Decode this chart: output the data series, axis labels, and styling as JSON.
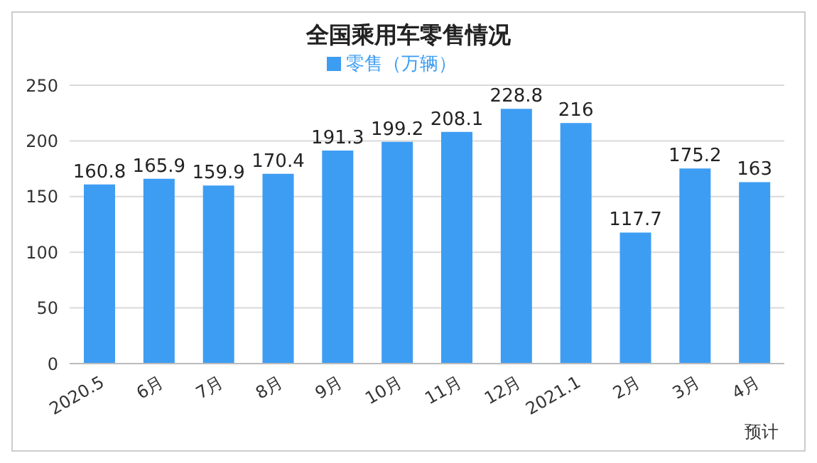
{
  "chart_data": {
    "type": "bar",
    "title": "全国乘用车零售情况",
    "categories": [
      "2020.5",
      "6月",
      "7月",
      "8月",
      "9月",
      "10月",
      "11月",
      "12月",
      "2021.1",
      "2月",
      "3月",
      "4月"
    ],
    "series": [
      {
        "name": "零售（万辆）",
        "color": "#3d9df3",
        "values": [
          160.8,
          165.9,
          159.9,
          170.4,
          191.3,
          199.2,
          208.1,
          228.8,
          216,
          117.7,
          175.2,
          163
        ]
      }
    ],
    "ylim": [
      0,
      250
    ],
    "yticks": [
      0,
      50,
      100,
      150,
      200,
      250
    ],
    "grid": "y",
    "legend": "top",
    "data_labels": true,
    "annotations": [
      "预计"
    ]
  }
}
